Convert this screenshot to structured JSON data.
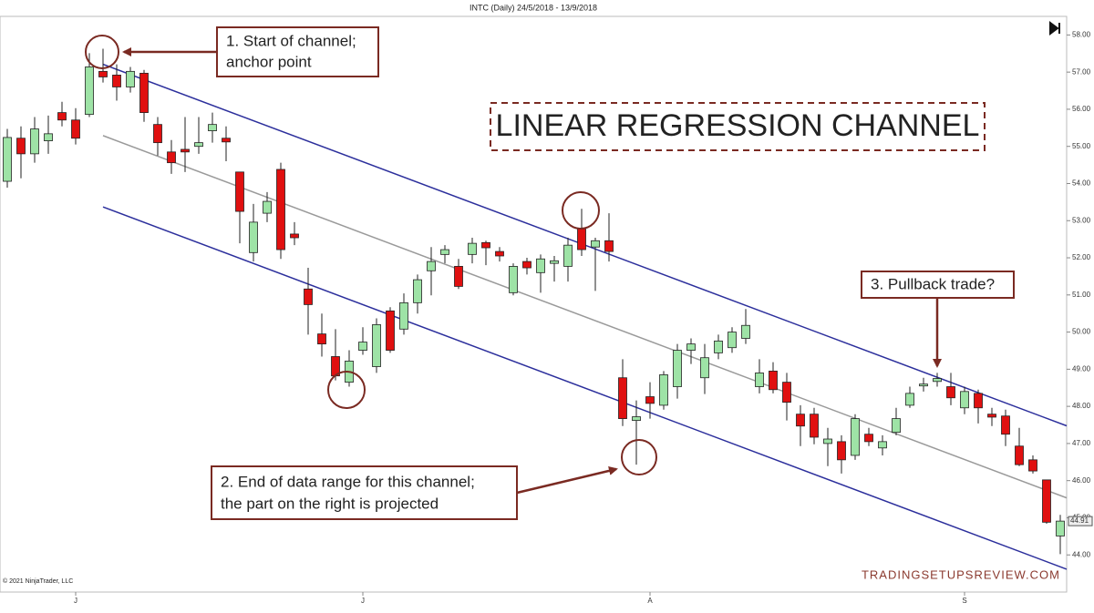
{
  "chart_data": {
    "type": "candlestick",
    "title": "INTC (Daily)  24/5/2018 - 13/9/2018",
    "categories": [
      null,
      null,
      null,
      null,
      null,
      "J",
      null,
      null,
      null,
      null,
      null,
      null,
      null,
      null,
      null,
      null,
      null,
      null,
      null,
      null,
      null,
      null,
      null,
      null,
      null,
      null,
      "J",
      null,
      null,
      null,
      null,
      null,
      null,
      null,
      null,
      null,
      null,
      null,
      null,
      null,
      null,
      null,
      null,
      null,
      null,
      null,
      null,
      "A",
      null,
      null,
      null,
      null,
      null,
      null,
      null,
      null,
      null,
      null,
      null,
      null,
      null,
      null,
      null,
      null,
      null,
      null,
      null,
      null,
      null,
      null,
      "S",
      null,
      null,
      null,
      null,
      null,
      null,
      null
    ],
    "open": [
      54.06,
      55.22,
      54.8,
      55.15,
      55.91,
      55.71,
      55.86,
      57.02,
      56.92,
      56.6,
      56.97,
      55.59,
      54.85,
      54.92,
      55.0,
      55.42,
      55.22,
      54.31,
      52.14,
      53.2,
      54.38,
      52.64,
      51.16,
      49.95,
      49.34,
      48.65,
      49.51,
      49.07,
      50.57,
      50.08,
      50.79,
      51.65,
      52.09,
      51.77,
      52.09,
      52.41,
      52.17,
      51.06,
      51.9,
      51.6,
      51.85,
      51.77,
      52.78,
      52.29,
      52.46,
      48.77,
      47.62,
      48.26,
      48.03,
      48.53,
      49.51,
      48.77,
      49.44,
      49.58,
      49.83,
      48.53,
      48.95,
      48.65,
      47.79,
      47.79,
      47.0,
      47.05,
      46.68,
      47.25,
      46.88,
      47.3,
      48.03,
      48.55,
      48.67,
      48.53,
      47.96,
      48.35,
      47.79,
      47.74,
      46.93,
      46.56,
      46.02,
      44.51
    ],
    "high": [
      55.47,
      55.54,
      55.79,
      55.83,
      56.2,
      56.03,
      57.51,
      57.63,
      57.21,
      57.14,
      57.06,
      55.79,
      55.17,
      55.79,
      55.79,
      55.91,
      55.54,
      54.31,
      53.45,
      53.77,
      54.56,
      52.96,
      51.73,
      50.5,
      50.08,
      49.51,
      50.13,
      50.37,
      50.67,
      51.04,
      51.55,
      52.29,
      52.34,
      51.97,
      52.54,
      52.46,
      52.29,
      51.85,
      52.0,
      52.09,
      52.05,
      52.54,
      53.32,
      52.54,
      53.2,
      49.27,
      48.16,
      48.65,
      48.95,
      49.68,
      49.83,
      49.68,
      49.93,
      50.13,
      50.62,
      49.27,
      49.19,
      48.9,
      48.03,
      47.96,
      47.42,
      47.22,
      47.79,
      47.42,
      47.22,
      47.96,
      48.53,
      48.77,
      48.9,
      48.9,
      48.53,
      48.45,
      47.96,
      47.91,
      47.42,
      46.68,
      46.02,
      45.08
    ],
    "low": [
      53.89,
      54.14,
      54.56,
      54.8,
      55.54,
      55.05,
      55.79,
      56.72,
      56.23,
      56.45,
      55.66,
      54.75,
      54.26,
      54.31,
      54.8,
      55.1,
      54.6,
      52.39,
      51.9,
      52.96,
      51.97,
      52.34,
      49.93,
      49.34,
      48.7,
      48.53,
      49.39,
      48.9,
      49.44,
      49.93,
      50.5,
      50.99,
      51.85,
      51.16,
      51.85,
      51.8,
      51.9,
      50.99,
      51.55,
      51.06,
      51.36,
      51.36,
      52.05,
      51.11,
      51.9,
      47.47,
      46.43,
      47.67,
      47.91,
      48.21,
      49.14,
      48.33,
      49.27,
      49.44,
      49.68,
      48.35,
      48.35,
      47.62,
      46.93,
      46.98,
      46.39,
      46.19,
      46.56,
      46.93,
      46.68,
      47.22,
      47.96,
      48.4,
      48.53,
      48.03,
      47.79,
      47.54,
      47.47,
      46.93,
      46.39,
      46.19,
      44.84,
      44.02
    ],
    "close": [
      55.24,
      54.8,
      55.47,
      55.34,
      55.71,
      55.22,
      57.14,
      56.87,
      56.6,
      57.02,
      55.91,
      55.1,
      54.56,
      54.85,
      55.1,
      55.59,
      55.12,
      53.25,
      52.96,
      53.52,
      52.22,
      52.54,
      50.74,
      49.68,
      48.82,
      49.22,
      49.73,
      50.2,
      49.51,
      50.79,
      51.41,
      51.9,
      52.22,
      51.23,
      52.39,
      52.27,
      52.05,
      51.77,
      51.73,
      51.97,
      51.92,
      52.34,
      52.22,
      52.46,
      52.17,
      47.67,
      47.72,
      48.08,
      48.85,
      49.51,
      49.68,
      49.31,
      49.76,
      50.0,
      50.18,
      48.9,
      48.45,
      48.11,
      47.47,
      47.17,
      47.12,
      46.56,
      47.67,
      47.05,
      47.05,
      47.67,
      48.35,
      48.6,
      48.75,
      48.23,
      48.4,
      47.96,
      47.71,
      47.25,
      46.43,
      46.26,
      44.88,
      44.91
    ],
    "up_color": "#9ee3a6",
    "down_color": "#e01010",
    "last_price": {
      "value": 44.91,
      "label": "44.91"
    },
    "channel_lines": [
      {
        "color": "#2c2f9c",
        "from": [
          7,
          57.21
        ],
        "to": [
          77,
          47.54
        ]
      },
      {
        "color": "#9a9a9a",
        "from": [
          7,
          55.29
        ],
        "to": [
          77,
          45.6
        ]
      },
      {
        "color": "#2c2f9c",
        "from": [
          7,
          53.37
        ],
        "to": [
          77,
          43.68
        ]
      }
    ],
    "ylim": [
      43,
      58.5
    ],
    "yticks": [
      {
        "value": 58,
        "label": "58.00"
      },
      {
        "value": 57,
        "label": "57.00"
      },
      {
        "value": 56,
        "label": "56.00"
      },
      {
        "value": 55,
        "label": "55.00"
      },
      {
        "value": 54,
        "label": "54.00"
      },
      {
        "value": 53,
        "label": "53.00"
      },
      {
        "value": 52,
        "label": "52.00"
      },
      {
        "value": 51,
        "label": "51.00"
      },
      {
        "value": 50,
        "label": "50.00"
      },
      {
        "value": 49,
        "label": "49.00"
      },
      {
        "value": 48,
        "label": "48.00"
      },
      {
        "value": 47,
        "label": "47.00"
      },
      {
        "value": 46,
        "label": "46.00"
      },
      {
        "value": 45,
        "label": "45.00"
      },
      {
        "value": 44,
        "label": "44.00"
      }
    ],
    "annotations": {
      "heading": "LINEAR REGRESSION CHANNEL",
      "note1": [
        "1. Start of channel;",
        "anchor point"
      ],
      "note2": [
        "2. End of data range for this channel;",
        "the part on the right is projected"
      ],
      "note3": "3. Pullback trade?"
    },
    "watermark": "TRADINGSETUPSREVIEW.COM",
    "copyright": "© 2021 NinjaTrader, LLC"
  }
}
